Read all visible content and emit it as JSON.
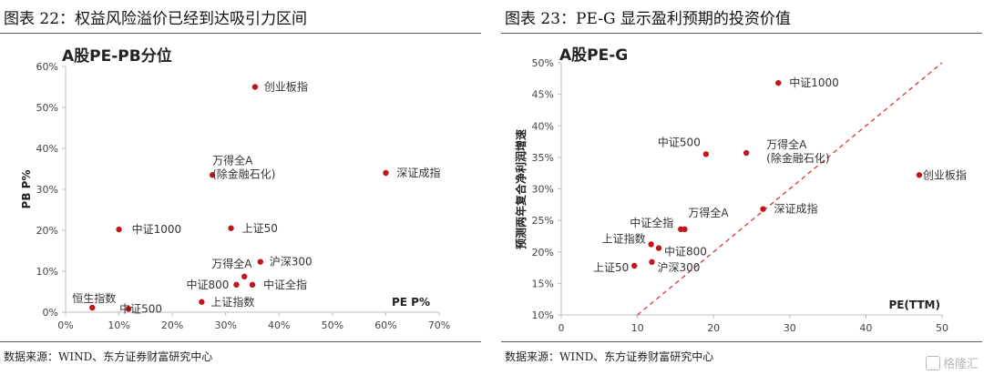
{
  "left": {
    "figure_title": "图表 22：权益风险溢价已经到达吸引力区间",
    "source": "数据来源：WIND、东方证券财富研究中心"
  },
  "right": {
    "figure_title": "图表 23：PE-G 显示盈利预期的投资价值",
    "source": "数据来源：WIND、东方证券财富研究中心"
  },
  "watermark": "格隆汇",
  "colors": {
    "point": "#c0161c",
    "diag": "#d62728",
    "axis": "#bfbfbf"
  },
  "chart_data": [
    {
      "type": "scatter",
      "title": "A股PE-PB分位",
      "xlabel": "PE P%",
      "ylabel": "PB P%",
      "xlim": [
        0,
        70
      ],
      "ylim": [
        0,
        60
      ],
      "x_ticks": [
        "0%",
        "10%",
        "20%",
        "30%",
        "40%",
        "50%",
        "60%",
        "70%"
      ],
      "y_ticks": [
        "0%",
        "10%",
        "20%",
        "30%",
        "40%",
        "50%",
        "60%"
      ],
      "grid": false,
      "points": [
        {
          "label": "创业板指",
          "x": 35.5,
          "y": 55
        },
        {
          "label": "深证成指",
          "x": 60,
          "y": 34
        },
        {
          "label": "万得全A\n(除金融石化)",
          "x": 27.5,
          "y": 33.5
        },
        {
          "label": "中证1000",
          "x": 10,
          "y": 20.2
        },
        {
          "label": "上证50",
          "x": 31,
          "y": 20.5
        },
        {
          "label": "沪深300",
          "x": 36.5,
          "y": 12.3
        },
        {
          "label": "万得全A",
          "x": 33.5,
          "y": 8.7
        },
        {
          "label": "中证800",
          "x": 32,
          "y": 6.7
        },
        {
          "label": "中证全指",
          "x": 35,
          "y": 6.7
        },
        {
          "label": "上证指数",
          "x": 25.5,
          "y": 2.5
        },
        {
          "label": "恒生指数",
          "x": 5,
          "y": 1.1
        },
        {
          "label": "中证500",
          "x": 11.8,
          "y": 0.8
        }
      ]
    },
    {
      "type": "scatter",
      "title": "A股PE-G",
      "xlabel": "PE(TTM)",
      "ylabel": "预测两年复合净利润增速",
      "xlim": [
        0,
        50
      ],
      "ylim": [
        10,
        50
      ],
      "x_ticks": [
        "0",
        "10",
        "20",
        "30",
        "40",
        "50"
      ],
      "y_ticks": [
        "10%",
        "15%",
        "20%",
        "25%",
        "30%",
        "35%",
        "40%",
        "45%",
        "50%"
      ],
      "grid": false,
      "reference_line": "y = x",
      "points": [
        {
          "label": "中证1000",
          "x": 28.5,
          "y": 46.8
        },
        {
          "label": "创业板指",
          "x": 47,
          "y": 32.2
        },
        {
          "label": "中证500",
          "x": 19,
          "y": 35.5
        },
        {
          "label": "万得全A\n(除金融石化)",
          "x": 24.3,
          "y": 35.7
        },
        {
          "label": "深证成指",
          "x": 26.5,
          "y": 26.8
        },
        {
          "label": "万得全A",
          "x": 16.2,
          "y": 23.6
        },
        {
          "label": "中证全指",
          "x": 15.7,
          "y": 23.6
        },
        {
          "label": "上证指数",
          "x": 11.8,
          "y": 21.2
        },
        {
          "label": "中证800",
          "x": 12.8,
          "y": 20.6
        },
        {
          "label": "上证50",
          "x": 9.6,
          "y": 17.8
        },
        {
          "label": "沪深300",
          "x": 11.9,
          "y": 18.4
        }
      ]
    }
  ]
}
